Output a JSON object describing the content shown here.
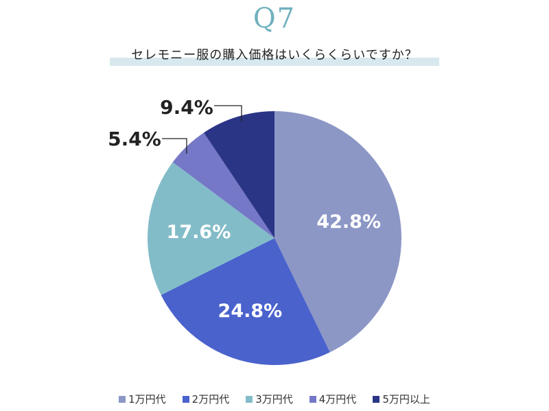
{
  "header": {
    "qnum": "Q7",
    "question": "セレモニー服の購入価格はいくらくらいですか？"
  },
  "chart_data": {
    "type": "pie",
    "categories": [
      "1万円代",
      "2万円代",
      "3万円代",
      "4万円代",
      "5万円以上"
    ],
    "values": [
      42.8,
      24.8,
      17.6,
      5.4,
      9.4
    ],
    "labels": [
      "42.8%",
      "24.8%",
      "17.6%",
      "5.4%",
      "9.4%"
    ],
    "colors": [
      "#8c97c6",
      "#4a62cc",
      "#83bcc9",
      "#7578c6",
      "#2b3586"
    ],
    "start": "12 o'clock",
    "direction": "clockwise",
    "legend_position": "bottom"
  }
}
